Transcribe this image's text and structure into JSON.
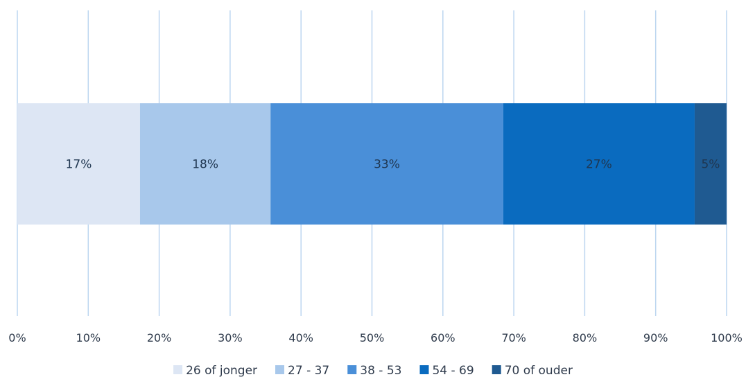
{
  "chart_data": {
    "type": "bar",
    "orientation": "horizontal",
    "stacked": true,
    "categories": [
      ""
    ],
    "series": [
      {
        "name": "26 of jonger",
        "values": [
          17.3
        ],
        "label": "17%",
        "color": "#dde6f4"
      },
      {
        "name": "27 - 37",
        "values": [
          18.4
        ],
        "label": "18%",
        "color": "#a8c8eb"
      },
      {
        "name": "38 - 53",
        "values": [
          32.8
        ],
        "label": "33%",
        "color": "#4a8fd8"
      },
      {
        "name": "54  - 69",
        "values": [
          27.0
        ],
        "label": "27%",
        "color": "#0a6bbf"
      },
      {
        "name": "70 of ouder",
        "values": [
          4.5
        ],
        "label": "5%",
        "color": "#1f5a91"
      }
    ],
    "xlim": [
      0,
      100
    ],
    "x_ticks": [
      "0%",
      "10%",
      "20%",
      "30%",
      "40%",
      "50%",
      "60%",
      "70%",
      "80%",
      "90%",
      "100%"
    ],
    "grid": true,
    "legend_position": "bottom",
    "title": "",
    "xlabel": "",
    "ylabel": ""
  },
  "colors": {
    "gridline": "#bcd6f0",
    "text": "#2f3b4c"
  }
}
